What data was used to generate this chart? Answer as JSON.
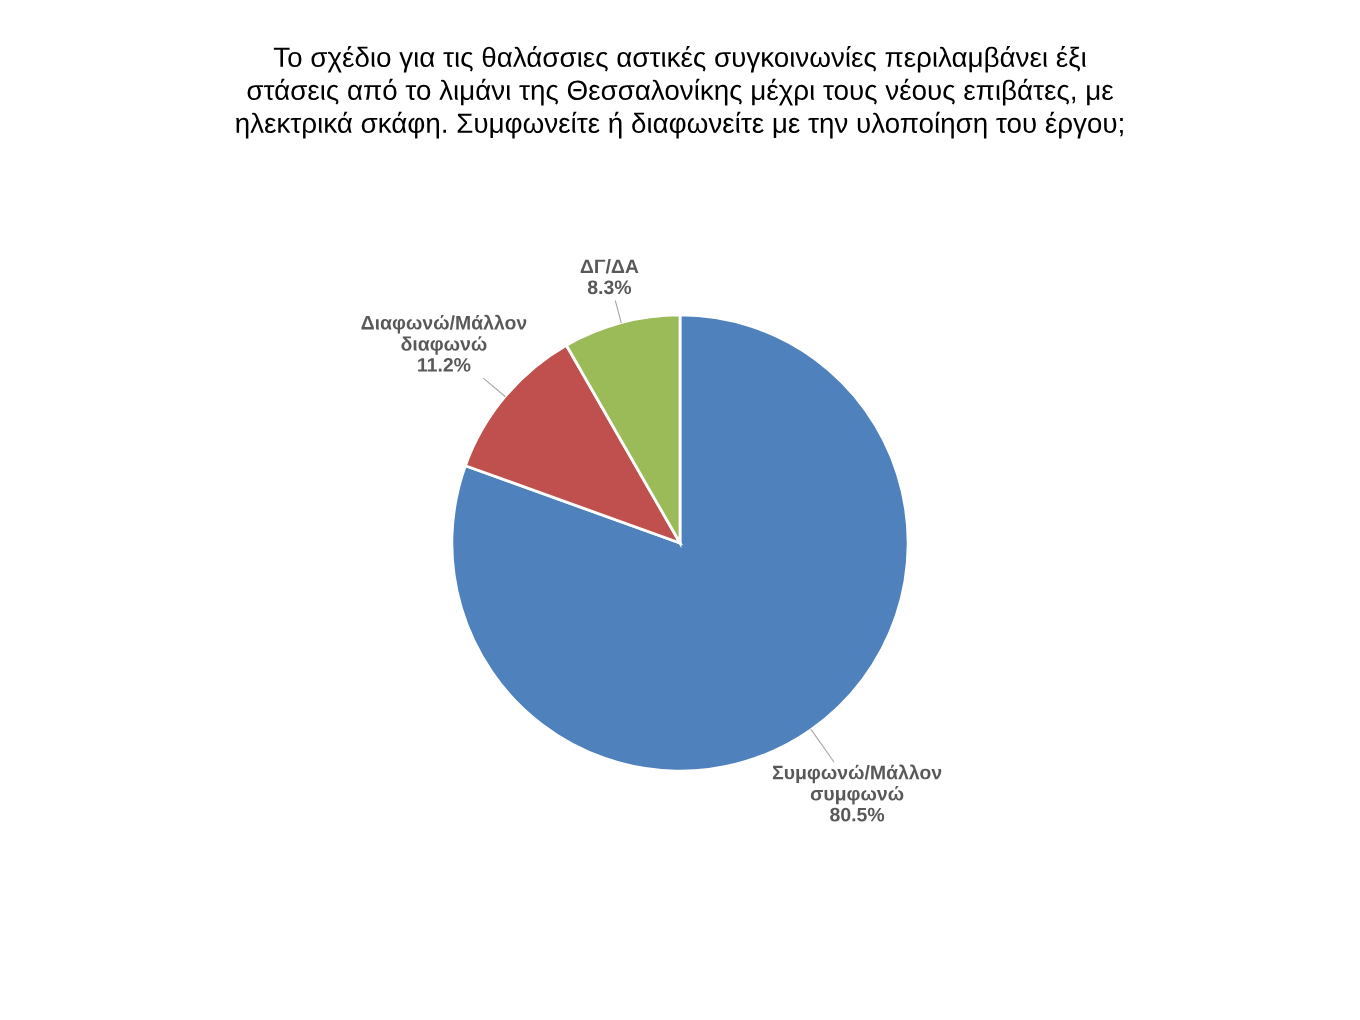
{
  "chart_data": {
    "type": "pie",
    "title": "Το σχέδιο για τις θαλάσσιες αστικές συγκοινωνίες περιλαμβάνει έξι\nστάσεις από το λιμάνι της Θεσσαλονίκης μέχρι τους νέους επιβάτες, με\nηλεκτρικά σκάφη. Συμφωνείτε ή διαφωνείτε με την υλοποίηση του έργου;",
    "categories": [
      "Συμφωνώ/Μάλλον\nσυμφωνώ",
      "Διαφωνώ/Μάλλον\nδιαφωνώ",
      "ΔΓ/ΔΑ"
    ],
    "values": [
      80.5,
      11.2,
      8.3
    ],
    "value_labels": [
      "80.5%",
      "11.2%",
      "8.3%"
    ],
    "colors": [
      "#4f81bd",
      "#c0504d",
      "#9bbb59"
    ],
    "legend": false
  }
}
